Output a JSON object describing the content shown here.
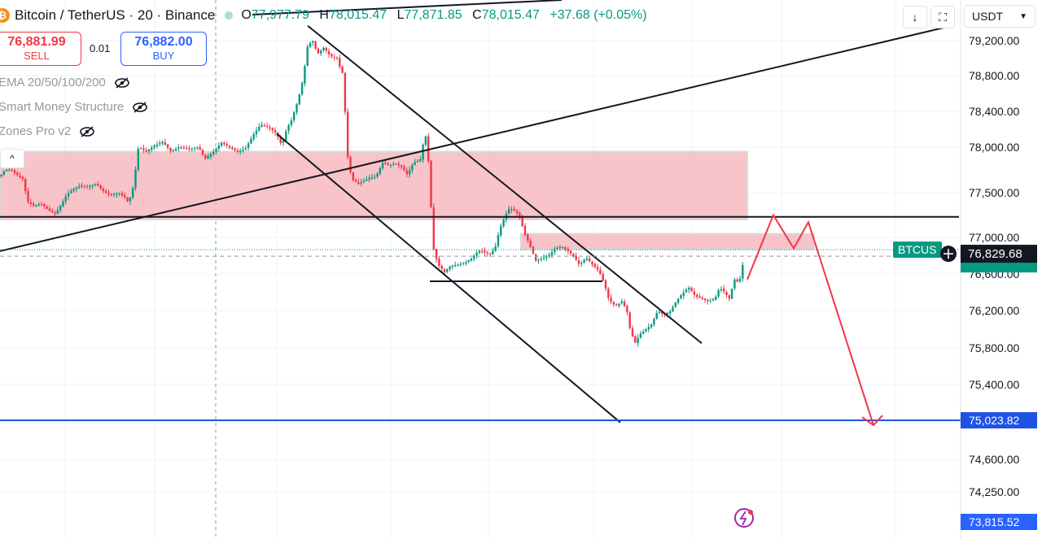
{
  "header": {
    "logo": "bitcoin-logo",
    "symbol": "Bitcoin / TetherUS · 20 · Binance",
    "o_label": "O",
    "o": "77,977.79",
    "h_label": "H",
    "h": "78,015.47",
    "l_label": "L",
    "l": "77,871.85",
    "c_label": "C",
    "c": "78,015.47",
    "change": "+37.68 (+0.05%)"
  },
  "trade": {
    "sell_price": "76,881.99",
    "sell_label": "SELL",
    "quantity": "0.01",
    "buy_price": "76,882.00",
    "buy_label": "BUY"
  },
  "indicators": [
    "EMA 20/50/100/200",
    "Smart Money Structure",
    "Zones Pro v2"
  ],
  "toolbar": {
    "currency": "USDT",
    "download_icon": "arrow-down-icon",
    "fullscreen_icon": "fullscreen-icon"
  },
  "colors": {
    "up": "#089981",
    "down": "#f23645",
    "zone": "#f7b6bd",
    "support_line": "#1e53e5",
    "projection": "#f23645"
  },
  "chart_data": {
    "type": "candlestick",
    "symbol": "BTCUSDT",
    "y_ticks": [
      79200,
      78800,
      78400,
      78000,
      77500,
      77000,
      76600,
      76200,
      75800,
      75400,
      74600,
      74250
    ],
    "y_tick_labels": [
      "79,200.00",
      "78,800.00",
      "78,400.00",
      "78,000.00",
      "77,500.00",
      "77,000.00",
      "76,600.00",
      "76,200.00",
      "75,800.00",
      "75,400.00",
      "74,600.00",
      "74,250.00"
    ],
    "current_price": 76829.68,
    "current_price_label": "76,829.68",
    "current_tag": "BTCUS",
    "support_level": 75023.82,
    "support_label": "75,023.82",
    "bottom_price_label": "73,815.52",
    "path": [
      [
        0,
        77680
      ],
      [
        6,
        77750
      ],
      [
        14,
        77750
      ],
      [
        20,
        77700
      ],
      [
        28,
        77650
      ],
      [
        34,
        77400
      ],
      [
        42,
        77350
      ],
      [
        50,
        77380
      ],
      [
        60,
        77300
      ],
      [
        68,
        77260
      ],
      [
        74,
        77350
      ],
      [
        82,
        77480
      ],
      [
        92,
        77550
      ],
      [
        100,
        77580
      ],
      [
        108,
        77560
      ],
      [
        118,
        77600
      ],
      [
        126,
        77520
      ],
      [
        136,
        77470
      ],
      [
        146,
        77500
      ],
      [
        154,
        77440
      ],
      [
        158,
        77380
      ],
      [
        164,
        77580
      ],
      [
        170,
        78000
      ],
      [
        180,
        77950
      ],
      [
        190,
        78020
      ],
      [
        200,
        78060
      ],
      [
        210,
        77950
      ],
      [
        220,
        78000
      ],
      [
        232,
        77980
      ],
      [
        244,
        78000
      ],
      [
        252,
        77870
      ],
      [
        262,
        77950
      ],
      [
        272,
        78050
      ],
      [
        282,
        78000
      ],
      [
        292,
        77950
      ],
      [
        302,
        77990
      ],
      [
        312,
        78150
      ],
      [
        320,
        78250
      ],
      [
        330,
        78220
      ],
      [
        340,
        78150
      ],
      [
        346,
        78020
      ],
      [
        352,
        78200
      ],
      [
        358,
        78300
      ],
      [
        366,
        78520
      ],
      [
        372,
        78750
      ],
      [
        378,
        79150
      ],
      [
        384,
        79200
      ],
      [
        390,
        79050
      ],
      [
        398,
        79120
      ],
      [
        406,
        79020
      ],
      [
        414,
        79000
      ],
      [
        418,
        78880
      ],
      [
        422,
        78800
      ],
      [
        426,
        77950
      ],
      [
        432,
        77650
      ],
      [
        440,
        77600
      ],
      [
        448,
        77630
      ],
      [
        456,
        77670
      ],
      [
        462,
        77680
      ],
      [
        470,
        77830
      ],
      [
        478,
        77800
      ],
      [
        486,
        77820
      ],
      [
        494,
        77780
      ],
      [
        500,
        77700
      ],
      [
        508,
        77830
      ],
      [
        516,
        77850
      ],
      [
        520,
        78050
      ],
      [
        524,
        78150
      ],
      [
        528,
        77600
      ],
      [
        532,
        76900
      ],
      [
        538,
        76700
      ],
      [
        546,
        76620
      ],
      [
        554,
        76690
      ],
      [
        562,
        76700
      ],
      [
        570,
        76720
      ],
      [
        578,
        76760
      ],
      [
        584,
        76820
      ],
      [
        590,
        76860
      ],
      [
        596,
        76830
      ],
      [
        602,
        76820
      ],
      [
        608,
        76880
      ],
      [
        614,
        77100
      ],
      [
        620,
        77230
      ],
      [
        626,
        77330
      ],
      [
        632,
        77300
      ],
      [
        638,
        77250
      ],
      [
        644,
        77050
      ],
      [
        650,
        76930
      ],
      [
        658,
        76750
      ],
      [
        666,
        76770
      ],
      [
        674,
        76800
      ],
      [
        682,
        76880
      ],
      [
        690,
        76900
      ],
      [
        698,
        76850
      ],
      [
        704,
        76800
      ],
      [
        712,
        76700
      ],
      [
        720,
        76780
      ],
      [
        728,
        76700
      ],
      [
        736,
        76630
      ],
      [
        742,
        76500
      ],
      [
        748,
        76320
      ],
      [
        756,
        76250
      ],
      [
        764,
        76300
      ],
      [
        770,
        76200
      ],
      [
        774,
        76000
      ],
      [
        780,
        75850
      ],
      [
        786,
        75950
      ],
      [
        794,
        76000
      ],
      [
        800,
        76050
      ],
      [
        808,
        76200
      ],
      [
        816,
        76150
      ],
      [
        824,
        76200
      ],
      [
        832,
        76320
      ],
      [
        840,
        76400
      ],
      [
        846,
        76450
      ],
      [
        854,
        76360
      ],
      [
        862,
        76330
      ],
      [
        870,
        76300
      ],
      [
        878,
        76330
      ],
      [
        884,
        76450
      ],
      [
        890,
        76400
      ],
      [
        896,
        76330
      ],
      [
        902,
        76540
      ],
      [
        908,
        76500
      ],
      [
        912,
        76680
      ],
      [
        915,
        76830
      ]
    ],
    "zones": [
      {
        "x0": 0,
        "x1": 918,
        "y_top": 77950,
        "y_bottom": 77200
      },
      {
        "x0": 640,
        "x1": 1000,
        "y_top": 77040,
        "y_bottom": 76870
      }
    ],
    "trendlines": [
      {
        "x0": 0,
        "y0": 76850,
        "x1": 1160,
        "y1": 79350,
        "color": "#131722"
      },
      {
        "x0": 0,
        "y0": 77230,
        "x1": 1178,
        "y1": 77230,
        "color": "#131722"
      },
      {
        "x0": 378,
        "y0": 79370,
        "x1": 862,
        "y1": 75850,
        "color": "#131722"
      },
      {
        "x0": 340,
        "y0": 78150,
        "x1": 762,
        "y1": 75000,
        "color": "#131722"
      },
      {
        "x0": 528,
        "y0": 76520,
        "x1": 740,
        "y1": 76520,
        "color": "#131722"
      }
    ],
    "projection": [
      [
        918,
        76540
      ],
      [
        950,
        77250
      ],
      [
        975,
        76880
      ],
      [
        993,
        77170
      ],
      [
        1073,
        74970
      ]
    ],
    "grid": true
  }
}
